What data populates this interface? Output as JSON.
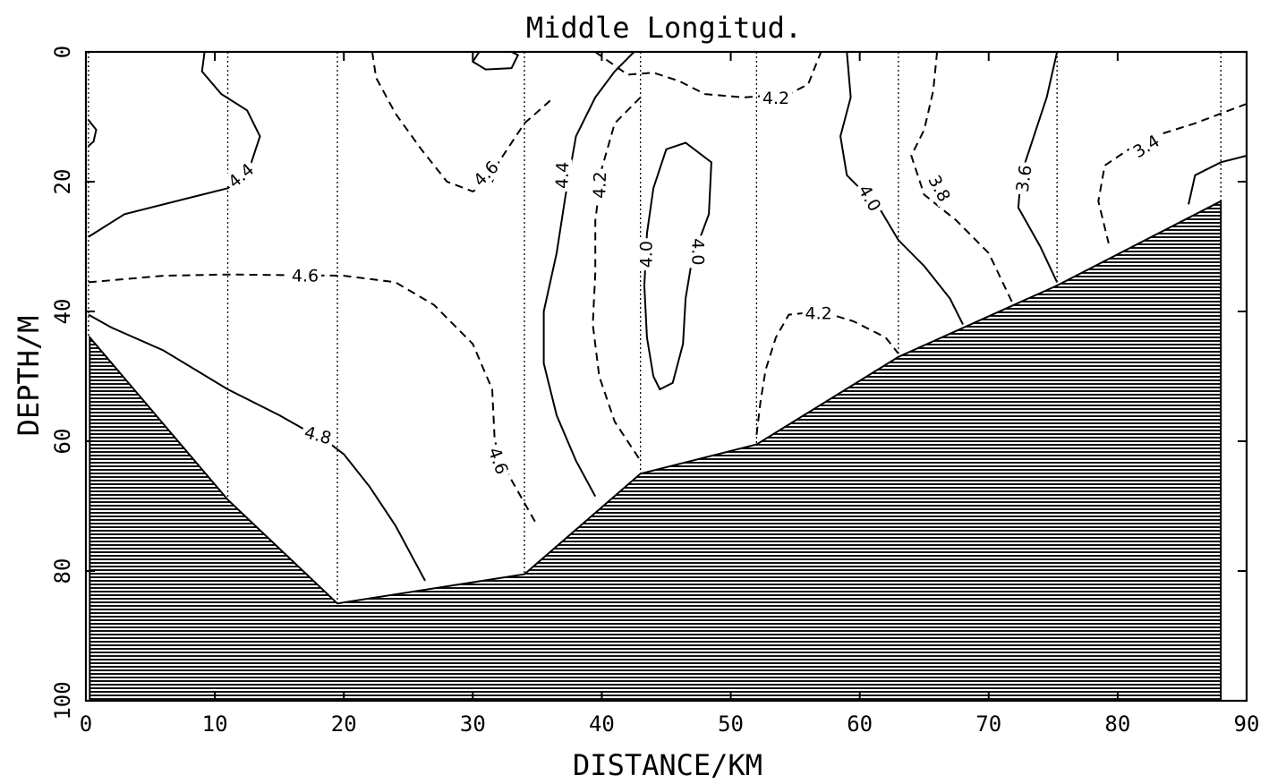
{
  "chart_data": {
    "type": "contour",
    "title": "Middle Longitud.",
    "xlabel": "DISTANCE/KM",
    "ylabel": "DEPTH/M",
    "xlim": [
      0,
      90
    ],
    "ylim": [
      0,
      100
    ],
    "y_inverted": true,
    "x_ticks": [
      "0",
      "10",
      "20",
      "30",
      "40",
      "50",
      "60",
      "70",
      "80",
      "90"
    ],
    "y_ticks": [
      "0",
      "20",
      "40",
      "60",
      "80",
      "100"
    ],
    "stations_km": [
      0.2,
      11,
      19.5,
      34,
      43,
      52,
      63,
      75.3,
      88
    ],
    "bottom_profile": [
      [
        0.3,
        44
      ],
      [
        11,
        69
      ],
      [
        19.5,
        85
      ],
      [
        34,
        80.5
      ],
      [
        43,
        65
      ],
      [
        52,
        60.5
      ],
      [
        63,
        47
      ],
      [
        75.3,
        36
      ],
      [
        88,
        23
      ]
    ],
    "contours": [
      {
        "label": "4.4",
        "style": "solid",
        "points": [
          [
            0.2,
            28.5
          ],
          [
            3,
            25
          ],
          [
            8,
            22.5
          ],
          [
            11,
            21
          ],
          [
            12.5,
            19
          ],
          [
            13.5,
            13
          ],
          [
            12.5,
            9
          ],
          [
            10.5,
            6.5
          ],
          [
            9,
            3
          ],
          [
            9.2,
            0
          ]
        ]
      },
      {
        "label": "4.6",
        "style": "dashed",
        "points": [
          [
            0.2,
            35.5
          ],
          [
            6,
            34.5
          ],
          [
            11,
            34.3
          ],
          [
            20,
            34.5
          ],
          [
            24,
            35.5
          ],
          [
            27,
            39
          ],
          [
            30,
            45
          ],
          [
            31.5,
            52
          ],
          [
            31.7,
            60
          ],
          [
            33,
            66
          ],
          [
            35,
            73
          ]
        ]
      },
      {
        "label": "4.8",
        "style": "solid",
        "points": [
          [
            0.2,
            40.5
          ],
          [
            2,
            42.5
          ],
          [
            6,
            46
          ],
          [
            11,
            52
          ],
          [
            15,
            56
          ],
          [
            19,
            60.5
          ],
          [
            20,
            62
          ],
          [
            22,
            67
          ],
          [
            24,
            73
          ],
          [
            26.3,
            81.5
          ]
        ]
      },
      {
        "label": "4.6",
        "style": "dashed",
        "points": [
          [
            22.2,
            0
          ],
          [
            22.5,
            4
          ],
          [
            24,
            9.5
          ],
          [
            26,
            15
          ],
          [
            28,
            20
          ],
          [
            30,
            21.5
          ],
          [
            31.5,
            20
          ],
          [
            32,
            17
          ],
          [
            34,
            11
          ],
          [
            36,
            7.5
          ]
        ]
      },
      {
        "label": "4.4",
        "style": "solid",
        "points": [
          [
            39.5,
            68.5
          ],
          [
            38,
            63
          ],
          [
            36.5,
            56
          ],
          [
            35.5,
            48
          ],
          [
            35.5,
            40
          ],
          [
            36.5,
            31
          ],
          [
            37.2,
            22
          ],
          [
            38,
            13
          ],
          [
            39.5,
            7
          ],
          [
            41,
            3
          ],
          [
            42.5,
            0
          ]
        ]
      },
      {
        "label": "4.2",
        "style": "dashed",
        "points": [
          [
            39.5,
            0
          ],
          [
            42,
            3.5
          ],
          [
            44,
            3.2
          ],
          [
            46,
            4.5
          ],
          [
            48,
            6.5
          ],
          [
            51,
            7
          ],
          [
            54.5,
            6.5
          ],
          [
            56,
            5
          ],
          [
            57,
            0
          ]
        ]
      },
      {
        "label": "4.2",
        "style": "dashed",
        "points": [
          [
            43,
            7
          ],
          [
            41,
            11
          ],
          [
            40,
            18
          ],
          [
            39.5,
            26
          ],
          [
            39.5,
            34
          ],
          [
            39.3,
            42
          ],
          [
            39.8,
            50
          ],
          [
            41,
            57
          ],
          [
            43,
            63
          ]
        ]
      },
      {
        "label": "4.0",
        "style": "solid",
        "points": [
          [
            44,
            50
          ],
          [
            43.5,
            44
          ],
          [
            43.3,
            36
          ],
          [
            43.5,
            28
          ],
          [
            44,
            21
          ],
          [
            45,
            15
          ],
          [
            46.5,
            14
          ],
          [
            48.5,
            17
          ],
          [
            48.3,
            25
          ],
          [
            47,
            32
          ],
          [
            46.5,
            38
          ],
          [
            46.3,
            45
          ],
          [
            45.5,
            51
          ],
          [
            44.5,
            52
          ],
          [
            44,
            50
          ]
        ]
      },
      {
        "label": "4.2",
        "style": "dashed",
        "points": [
          [
            52,
            59
          ],
          [
            52.3,
            54
          ],
          [
            52.7,
            49
          ],
          [
            53.5,
            44
          ],
          [
            54.5,
            40.5
          ],
          [
            57,
            40
          ],
          [
            59.5,
            41.5
          ],
          [
            62,
            44
          ],
          [
            63,
            46.5
          ]
        ]
      },
      {
        "label": "4.0",
        "style": "solid",
        "points": [
          [
            59,
            0
          ],
          [
            59.3,
            7
          ],
          [
            58.5,
            13
          ],
          [
            59,
            19
          ],
          [
            61.5,
            24
          ],
          [
            63,
            29
          ],
          [
            65,
            33
          ],
          [
            67,
            38
          ],
          [
            68,
            42
          ]
        ]
      },
      {
        "label": "3.8",
        "style": "dashed",
        "points": [
          [
            66,
            0
          ],
          [
            65.7,
            6
          ],
          [
            65,
            12
          ],
          [
            64,
            16
          ],
          [
            65,
            22
          ],
          [
            67.5,
            26
          ],
          [
            70,
            31
          ],
          [
            71.8,
            38.5
          ]
        ]
      },
      {
        "label": "3.6",
        "style": "solid",
        "points": [
          [
            75.3,
            0
          ],
          [
            74.5,
            7
          ],
          [
            73.5,
            13
          ],
          [
            72.5,
            19
          ],
          [
            72.3,
            24
          ],
          [
            74,
            30
          ],
          [
            75.3,
            35.5
          ]
        ]
      },
      {
        "label": "3.4",
        "style": "dashed",
        "points": [
          [
            90,
            8
          ],
          [
            86,
            11
          ],
          [
            82,
            13.5
          ],
          [
            79,
            17.5
          ],
          [
            78.5,
            23
          ],
          [
            79.3,
            29.5
          ]
        ]
      },
      {
        "label": "",
        "style": "solid",
        "points": [
          [
            85.5,
            23.5
          ],
          [
            86,
            19
          ],
          [
            88,
            17
          ],
          [
            90,
            16
          ]
        ]
      },
      {
        "label": "",
        "style": "solid",
        "points": [
          [
            30.5,
            0
          ],
          [
            30,
            1.5
          ],
          [
            31,
            2.7
          ],
          [
            33,
            2.5
          ],
          [
            33.5,
            0.5
          ],
          [
            33,
            0
          ]
        ]
      },
      {
        "label": "",
        "style": "solid",
        "points": [
          [
            0.2,
            10.5
          ],
          [
            0.8,
            12
          ],
          [
            0.6,
            13.8
          ],
          [
            0.2,
            14.5
          ]
        ]
      }
    ],
    "contour_labels": [
      {
        "text": "4.4",
        "x": 12,
        "y": 19,
        "angle": -40
      },
      {
        "text": "4.6",
        "x": 17,
        "y": 34.4,
        "angle": 0
      },
      {
        "text": "4.8",
        "x": 18,
        "y": 59,
        "angle": 15
      },
      {
        "text": "4.6",
        "x": 31,
        "y": 18.7,
        "angle": -45
      },
      {
        "text": "4.6",
        "x": 32,
        "y": 63,
        "angle": 70
      },
      {
        "text": "4.4",
        "x": 36.9,
        "y": 19,
        "angle": -88
      },
      {
        "text": "4.2",
        "x": 39.8,
        "y": 20.5,
        "angle": -88
      },
      {
        "text": "4.2",
        "x": 53.5,
        "y": 7,
        "angle": 0
      },
      {
        "text": "4.0",
        "x": 43.4,
        "y": 31.2,
        "angle": -90
      },
      {
        "text": "4.0",
        "x": 47.5,
        "y": 30.8,
        "angle": 90
      },
      {
        "text": "4.2",
        "x": 56.8,
        "y": 40.2,
        "angle": 0
      },
      {
        "text": "4.0",
        "x": 60.8,
        "y": 22.5,
        "angle": 60
      },
      {
        "text": "3.8",
        "x": 66.2,
        "y": 21,
        "angle": 62
      },
      {
        "text": "3.6",
        "x": 72.7,
        "y": 19.5,
        "angle": -82
      },
      {
        "text": "3.4",
        "x": 82.2,
        "y": 14.5,
        "angle": -32
      }
    ]
  }
}
